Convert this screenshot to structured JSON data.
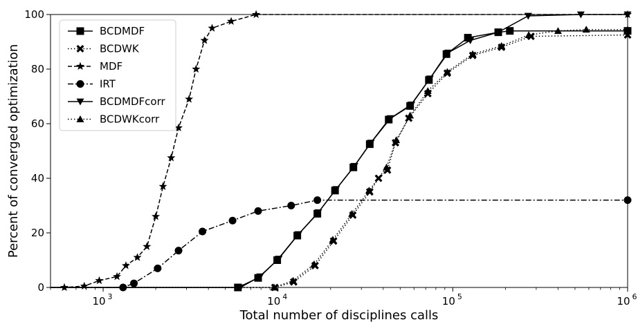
{
  "chart_data": {
    "type": "line",
    "title": "",
    "xlabel": "Total number of disciplines calls",
    "ylabel": "Percent of converged optimization",
    "xscale": "log",
    "xlim": [
      500,
      1000000
    ],
    "ylim": [
      0,
      100
    ],
    "x_ticks": [
      {
        "value": 1000,
        "base": "10",
        "exp": "3"
      },
      {
        "value": 10000,
        "base": "10",
        "exp": "4"
      },
      {
        "value": 100000,
        "base": "10",
        "exp": "5"
      },
      {
        "value": 1000000,
        "base": "10",
        "exp": "6"
      }
    ],
    "y_ticks": [
      "0",
      "20",
      "40",
      "60",
      "80",
      "100"
    ],
    "legend_position": "top-left",
    "grid": false,
    "series": [
      {
        "name": "BCDMDF",
        "linestyle": "solid",
        "marker": "square",
        "points": [
          [
            500,
            0
          ],
          [
            5900,
            0
          ],
          [
            7700,
            3.5
          ],
          [
            9900,
            10
          ],
          [
            12900,
            19
          ],
          [
            16800,
            27
          ],
          [
            21200,
            35.5
          ],
          [
            27000,
            44
          ],
          [
            33500,
            52.5
          ],
          [
            43000,
            61.5
          ],
          [
            57000,
            66.5
          ],
          [
            73000,
            76
          ],
          [
            92000,
            85.5
          ],
          [
            122000,
            91.5
          ],
          [
            182000,
            93.5
          ],
          [
            212000,
            94
          ],
          [
            1000000,
            94
          ]
        ]
      },
      {
        "name": "BCDWK",
        "linestyle": "dotted",
        "marker": "x",
        "points": [
          [
            500,
            0
          ],
          [
            9600,
            0
          ],
          [
            12300,
            2
          ],
          [
            16300,
            8
          ],
          [
            20800,
            17
          ],
          [
            26800,
            26.5
          ],
          [
            33500,
            35
          ],
          [
            37600,
            40
          ],
          [
            42300,
            43
          ],
          [
            47000,
            53
          ],
          [
            56000,
            62
          ],
          [
            72000,
            71
          ],
          [
            93000,
            78.5
          ],
          [
            130000,
            85
          ],
          [
            190000,
            88
          ],
          [
            280000,
            92
          ],
          [
            1000000,
            92.5
          ]
        ]
      },
      {
        "name": "MDF",
        "linestyle": "dashed",
        "marker": "star",
        "points": [
          [
            500,
            0
          ],
          [
            600,
            0
          ],
          [
            780,
            0.5
          ],
          [
            950,
            2.5
          ],
          [
            1200,
            4
          ],
          [
            1350,
            8
          ],
          [
            1570,
            11
          ],
          [
            1780,
            15
          ],
          [
            2000,
            26
          ],
          [
            2200,
            37
          ],
          [
            2450,
            47.5
          ],
          [
            2700,
            58.5
          ],
          [
            3100,
            69
          ],
          [
            3400,
            80
          ],
          [
            3800,
            90.5
          ],
          [
            4200,
            95
          ],
          [
            5400,
            97.5
          ],
          [
            7500,
            100
          ],
          [
            1000000,
            100
          ]
        ]
      },
      {
        "name": "IRT",
        "linestyle": "dashdot",
        "marker": "circle",
        "points": [
          [
            500,
            0
          ],
          [
            1300,
            0
          ],
          [
            1500,
            1.5
          ],
          [
            2050,
            7
          ],
          [
            2700,
            13.5
          ],
          [
            3700,
            20.5
          ],
          [
            5500,
            24.5
          ],
          [
            7700,
            28
          ],
          [
            11900,
            30
          ],
          [
            16800,
            32
          ],
          [
            1000000,
            32
          ]
        ]
      },
      {
        "name": "BCDMDFcorr",
        "linestyle": "solid",
        "marker": "triangle-down",
        "points": [
          [
            500,
            0
          ],
          [
            6100,
            0
          ],
          [
            7900,
            4
          ],
          [
            10100,
            10.5
          ],
          [
            13100,
            19.5
          ],
          [
            17000,
            27.5
          ],
          [
            21500,
            36
          ],
          [
            27400,
            44.5
          ],
          [
            34000,
            53
          ],
          [
            44000,
            62
          ],
          [
            58000,
            67
          ],
          [
            74000,
            76.5
          ],
          [
            94000,
            86
          ],
          [
            126000,
            90.5
          ],
          [
            182000,
            93.5
          ],
          [
            270000,
            99.5
          ],
          [
            540000,
            100
          ],
          [
            1000000,
            100
          ]
        ]
      },
      {
        "name": "BCDWKcorr",
        "linestyle": "dotted",
        "marker": "triangle-up",
        "points": [
          [
            500,
            0
          ],
          [
            9500,
            0
          ],
          [
            12200,
            2.5
          ],
          [
            16100,
            8.5
          ],
          [
            20600,
            17.5
          ],
          [
            26500,
            27
          ],
          [
            33200,
            35.5
          ],
          [
            41800,
            44
          ],
          [
            47500,
            54
          ],
          [
            57000,
            63
          ],
          [
            72000,
            72
          ],
          [
            93000,
            79
          ],
          [
            130000,
            85.5
          ],
          [
            190000,
            88.5
          ],
          [
            272000,
            92.5
          ],
          [
            400000,
            94
          ],
          [
            580000,
            94.5
          ],
          [
            1000000,
            94.5
          ]
        ]
      }
    ]
  }
}
